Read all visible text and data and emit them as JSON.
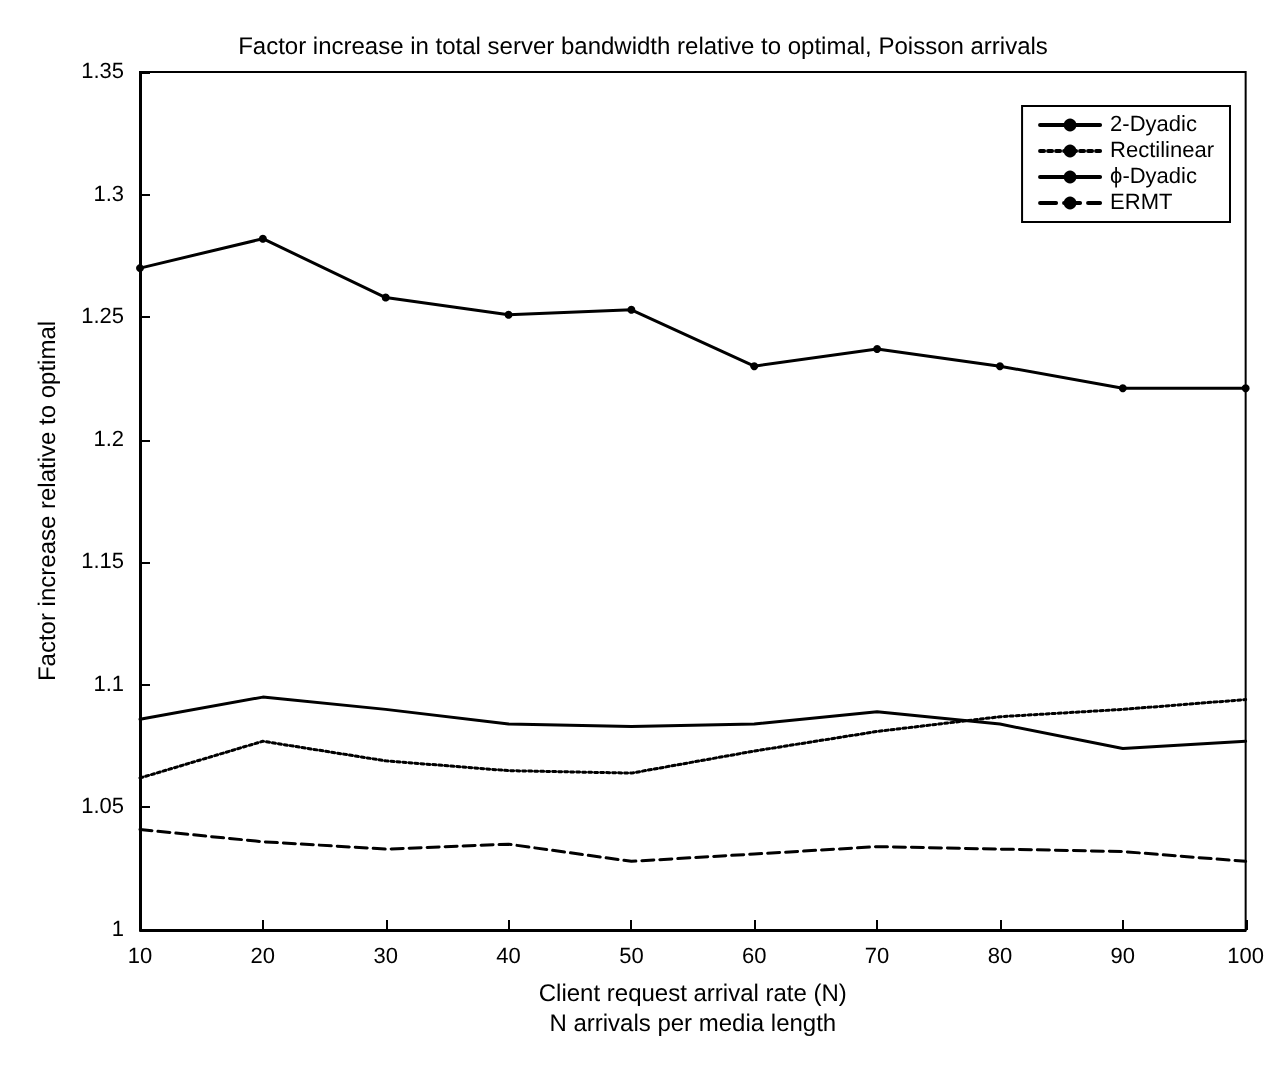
{
  "chart_data": {
    "type": "line",
    "title": "Factor increase in total server bandwidth relative to optimal, Poisson arrivals",
    "xlabel": "Client request arrival rate (N)\nN arrivals per media length",
    "ylabel": "Factor increase relative to optimal",
    "x": [
      10,
      20,
      30,
      40,
      50,
      60,
      70,
      80,
      90,
      100
    ],
    "xlim": [
      10,
      100
    ],
    "xticks": [
      10,
      20,
      30,
      40,
      50,
      60,
      70,
      80,
      90,
      100
    ],
    "ylim": [
      1,
      1.35
    ],
    "yticks": [
      1,
      1.05,
      1.1,
      1.15,
      1.2,
      1.25,
      1.3,
      1.35
    ],
    "grid": false,
    "legend": "top right",
    "series": [
      {
        "name": "2-Dyadic",
        "color": "#000000",
        "line_style": "solid",
        "marker": "circle",
        "values": [
          1.27,
          1.282,
          1.258,
          1.251,
          1.253,
          1.23,
          1.237,
          1.23,
          1.221,
          1.221
        ]
      },
      {
        "name": "Rectilinear",
        "color": "#000000",
        "line_style": "dotted",
        "marker": "none",
        "values": [
          1.062,
          1.077,
          1.069,
          1.065,
          1.064,
          1.073,
          1.081,
          1.087,
          1.09,
          1.094
        ]
      },
      {
        "name": "ϕ-Dyadic",
        "color": "#000000",
        "line_style": "solid",
        "marker": "none",
        "values": [
          1.086,
          1.095,
          1.09,
          1.084,
          1.083,
          1.084,
          1.089,
          1.084,
          1.074,
          1.077
        ]
      },
      {
        "name": "ERMT",
        "color": "#000000",
        "line_style": "dashed",
        "marker": "none",
        "values": [
          1.041,
          1.036,
          1.033,
          1.035,
          1.028,
          1.031,
          1.034,
          1.033,
          1.032,
          1.028
        ]
      }
    ]
  }
}
